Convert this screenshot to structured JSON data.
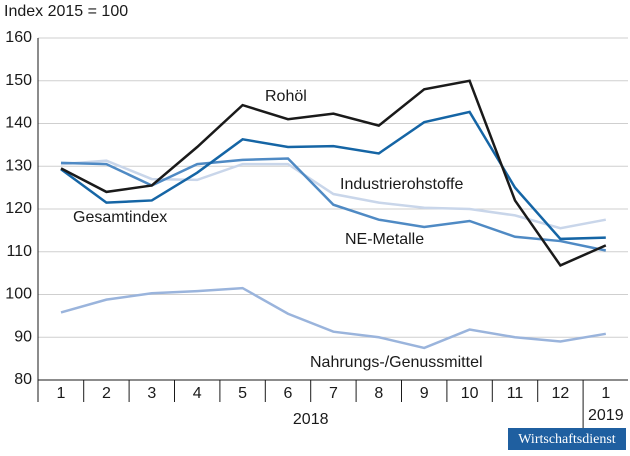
{
  "chart_data": {
    "type": "line",
    "y_axis_title": "Index 2015 = 100",
    "categories": [
      "1",
      "2",
      "3",
      "4",
      "5",
      "6",
      "7",
      "8",
      "9",
      "10",
      "11",
      "12",
      "1"
    ],
    "year_labels": [
      "2018",
      "2019"
    ],
    "ylim": [
      80,
      160
    ],
    "yticks": [
      80,
      90,
      100,
      110,
      120,
      130,
      140,
      150,
      160
    ],
    "grid": true,
    "series": [
      {
        "name": "Nahrungs-/Genussmittel",
        "color": "#9ab4dc",
        "values": [
          95.8,
          98.8,
          100.3,
          100.8,
          101.5,
          95.5,
          91.3,
          90,
          87.5,
          91.8,
          90,
          89,
          90.8
        ]
      },
      {
        "name": "Industrierohstoffe",
        "color": "#c9d6ea",
        "values": [
          130.5,
          131.3,
          127,
          126.8,
          130.5,
          130.5,
          123.5,
          121.5,
          120.3,
          120,
          118.5,
          115.5,
          117.5
        ]
      },
      {
        "name": "NE-Metalle",
        "color": "#4f8ac4",
        "values": [
          130.8,
          130.5,
          125.5,
          130.5,
          131.5,
          131.8,
          121,
          117.5,
          115.8,
          117.2,
          113.5,
          112.5,
          110.3
        ]
      },
      {
        "name": "Gesamtindex",
        "color": "#1565a5",
        "values": [
          129.3,
          121.5,
          122,
          128.5,
          136.3,
          134.5,
          134.7,
          133,
          140.3,
          142.7,
          125,
          113,
          113.3
        ]
      },
      {
        "name": "Rohöl",
        "color": "#1a1a1a",
        "values": [
          129.5,
          124,
          125.5,
          134.5,
          144.3,
          141,
          142.3,
          139.5,
          148,
          150,
          122,
          106.8,
          111.5
        ]
      }
    ],
    "badge": "Wirtschaftsdienst"
  }
}
